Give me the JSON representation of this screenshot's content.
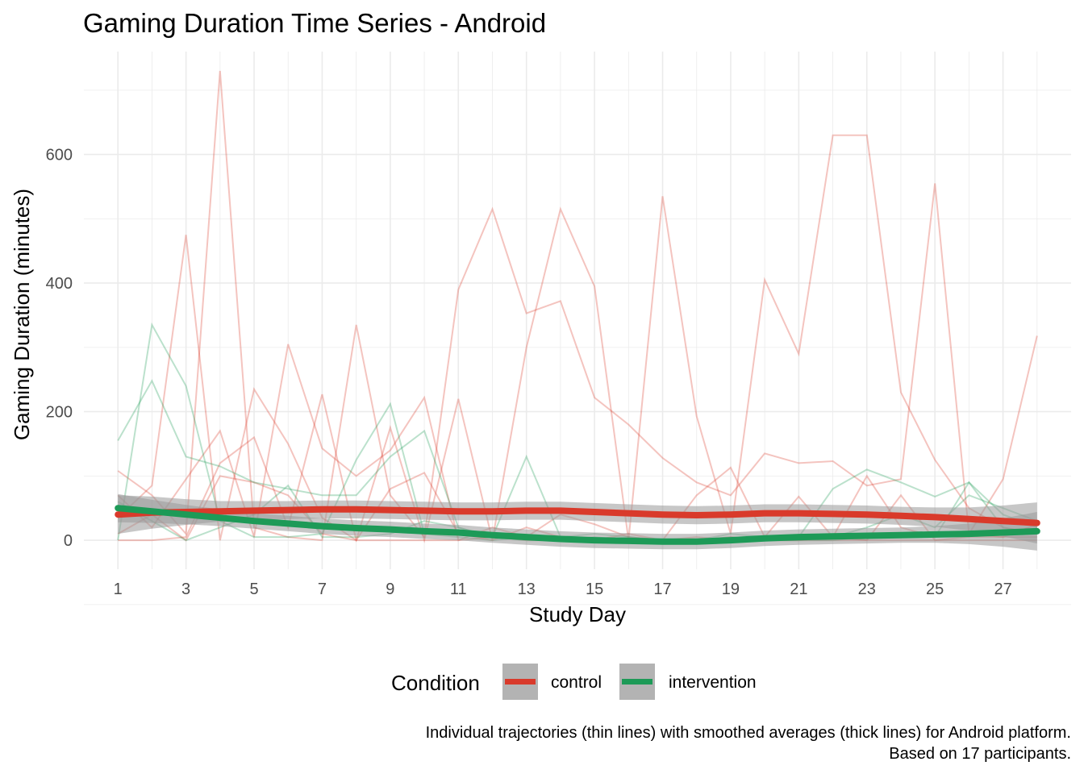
{
  "chart_data": {
    "type": "line",
    "title": "Gaming Duration Time Series - Android",
    "xlabel": "Study Day",
    "ylabel": "Gaming Duration (minutes)",
    "xlim": [
      0,
      29
    ],
    "ylim": [
      -45,
      760
    ],
    "x_ticks": [
      1,
      3,
      5,
      7,
      9,
      11,
      13,
      15,
      17,
      19,
      21,
      23,
      25,
      27
    ],
    "y_ticks": [
      0,
      200,
      400,
      600
    ],
    "grid": true,
    "legend": {
      "title": "Condition",
      "position": "bottom",
      "items": [
        {
          "label": "control",
          "color": "#d93a2b"
        },
        {
          "label": "intervention",
          "color": "#1d9a57"
        }
      ]
    },
    "caption_lines": [
      "Individual trajectories (thin lines) with smoothed averages (thick lines) for Android platform.",
      "Based on 17 participants."
    ],
    "colors": {
      "control": "#d93a2b",
      "intervention": "#1d9a57",
      "ribbon": "#999999"
    },
    "smoothed": [
      {
        "condition": "control",
        "x": [
          1,
          2,
          3,
          4,
          5,
          6,
          7,
          8,
          9,
          10,
          11,
          12,
          13,
          14,
          15,
          16,
          17,
          18,
          19,
          20,
          21,
          22,
          23,
          24,
          25,
          26,
          27,
          28
        ],
        "y": [
          40,
          43,
          44,
          45,
          46,
          47,
          48,
          48,
          47,
          46,
          45,
          45,
          46,
          46,
          44,
          42,
          40,
          39,
          40,
          42,
          42,
          41,
          40,
          38,
          36,
          33,
          30,
          27
        ],
        "se": [
          30,
          25,
          20,
          16,
          15,
          14,
          14,
          14,
          14,
          14,
          14,
          14,
          14,
          14,
          14,
          14,
          14,
          14,
          14,
          14,
          14,
          14,
          14,
          14,
          15,
          18,
          24,
          32
        ]
      },
      {
        "condition": "intervention",
        "x": [
          1,
          2,
          3,
          4,
          5,
          6,
          7,
          8,
          9,
          10,
          11,
          12,
          13,
          14,
          15,
          16,
          17,
          18,
          19,
          20,
          21,
          22,
          23,
          24,
          25,
          26,
          27,
          28
        ],
        "y": [
          50,
          45,
          40,
          35,
          30,
          26,
          22,
          19,
          17,
          14,
          12,
          8,
          5,
          2,
          0,
          -1,
          -2,
          -2,
          0,
          3,
          5,
          6,
          7,
          8,
          9,
          10,
          12,
          14
        ],
        "se": [
          22,
          18,
          15,
          13,
          12,
          12,
          12,
          12,
          12,
          12,
          12,
          12,
          12,
          12,
          12,
          12,
          12,
          12,
          12,
          12,
          12,
          12,
          12,
          12,
          13,
          16,
          22,
          30
        ]
      }
    ],
    "trajectories": [
      {
        "condition": "control",
        "x": [
          1,
          2,
          3,
          4,
          5,
          6,
          7,
          8,
          9,
          10,
          11,
          12,
          13,
          14,
          15,
          16,
          17,
          18,
          19,
          20,
          21,
          22,
          23,
          24,
          25,
          26,
          27,
          28
        ],
        "y": [
          108,
          70,
          10,
          730,
          20,
          5,
          0,
          335,
          70,
          5,
          390,
          515,
          353,
          372,
          222,
          180,
          128,
          90,
          70,
          135,
          120,
          123,
          85,
          95,
          555,
          10,
          95,
          318
        ]
      },
      {
        "condition": "control",
        "x": [
          1,
          2,
          3,
          4,
          5,
          6,
          7,
          8,
          9,
          10,
          11,
          12,
          13,
          14,
          15,
          16,
          17,
          18,
          19,
          20,
          21,
          22,
          23,
          24,
          25,
          26,
          27,
          28
        ],
        "y": [
          35,
          85,
          475,
          0,
          235,
          150,
          35,
          0,
          175,
          0,
          220,
          0,
          300,
          515,
          395,
          0,
          535,
          193,
          10,
          405,
          290,
          630,
          630,
          230,
          125,
          50,
          20,
          10
        ]
      },
      {
        "condition": "control",
        "x": [
          1,
          2,
          3,
          4,
          5,
          6,
          7,
          8,
          9,
          10,
          11,
          12,
          13,
          14,
          15,
          16,
          17,
          18,
          19,
          20,
          21,
          22,
          23,
          24,
          25,
          26,
          27,
          28
        ],
        "y": [
          70,
          20,
          95,
          170,
          5,
          305,
          143,
          100,
          140,
          222,
          0,
          20,
          5,
          40,
          25,
          5,
          0,
          70,
          113,
          5,
          68,
          5,
          100,
          20,
          5,
          10,
          5,
          25
        ]
      },
      {
        "condition": "control",
        "x": [
          1,
          2,
          3,
          4,
          5,
          6,
          7,
          8,
          9,
          10,
          11,
          12,
          13,
          14,
          15,
          16,
          17,
          18,
          19,
          20,
          21,
          22,
          23,
          24,
          25,
          26,
          27,
          28
        ],
        "y": [
          0,
          0,
          5,
          120,
          160,
          20,
          227,
          0,
          80,
          105,
          10,
          0,
          20,
          5,
          0,
          10,
          0,
          5,
          0,
          0,
          0,
          5,
          0,
          70,
          0,
          5,
          5,
          5
        ]
      },
      {
        "condition": "control",
        "x": [
          1,
          2,
          3,
          4,
          5,
          6,
          7,
          8,
          9,
          10,
          11,
          12,
          13,
          14,
          15,
          16,
          17,
          18,
          19,
          20,
          21,
          22,
          23,
          24,
          25,
          26,
          27,
          28
        ],
        "y": [
          10,
          40,
          0,
          100,
          90,
          70,
          10,
          0,
          0,
          0,
          0,
          5,
          0,
          0,
          0,
          0,
          0,
          0,
          5,
          0,
          0,
          0,
          0,
          0,
          0,
          0,
          0,
          0
        ]
      },
      {
        "condition": "intervention",
        "x": [
          1,
          2,
          3,
          4,
          5,
          6,
          7,
          8,
          9,
          10,
          11,
          12,
          13,
          14,
          15,
          16,
          17,
          18,
          19,
          20,
          21,
          22,
          23,
          24,
          25,
          26,
          27,
          28
        ],
        "y": [
          155,
          248,
          130,
          115,
          90,
          80,
          70,
          70,
          130,
          170,
          20,
          5,
          130,
          5,
          10,
          5,
          0,
          0,
          10,
          5,
          5,
          80,
          110,
          90,
          68,
          90,
          20,
          10
        ]
      },
      {
        "condition": "intervention",
        "x": [
          1,
          2,
          3,
          4,
          5,
          6,
          7,
          8,
          9,
          10,
          11,
          12,
          13,
          14,
          15,
          16,
          17,
          18,
          19,
          20,
          21,
          22,
          23,
          24,
          25,
          26,
          27,
          28
        ],
        "y": [
          0,
          335,
          240,
          30,
          5,
          5,
          10,
          125,
          212,
          10,
          5,
          0,
          5,
          0,
          0,
          5,
          0,
          0,
          5,
          0,
          0,
          0,
          5,
          10,
          5,
          90,
          40,
          20
        ]
      },
      {
        "condition": "intervention",
        "x": [
          1,
          2,
          3,
          4,
          5,
          6,
          7,
          8,
          9,
          10,
          11,
          12,
          13,
          14,
          15,
          16,
          17,
          18,
          19,
          20,
          21,
          22,
          23,
          24,
          25,
          26,
          27,
          28
        ],
        "y": [
          60,
          30,
          0,
          20,
          40,
          85,
          5,
          5,
          10,
          30,
          20,
          5,
          0,
          0,
          5,
          0,
          0,
          0,
          0,
          0,
          0,
          5,
          20,
          40,
          20,
          70,
          50,
          30
        ]
      }
    ]
  }
}
